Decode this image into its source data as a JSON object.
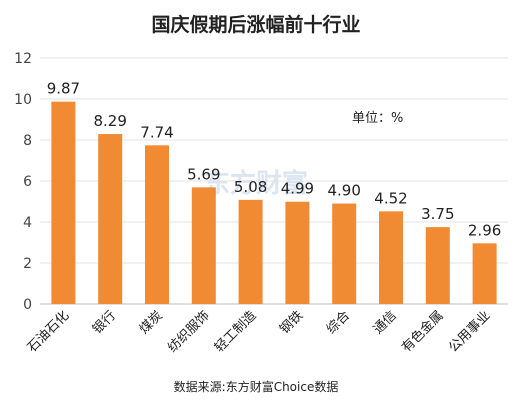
{
  "chart_data": {
    "type": "bar",
    "title": "国庆假期后涨幅前十行业",
    "unit_label": "单位：%",
    "source": "数据来源:东方财富Choice数据",
    "watermark": "东方财富",
    "categories": [
      "石油石化",
      "银行",
      "煤炭",
      "纺织服饰",
      "轻工制造",
      "钢铁",
      "综合",
      "通信",
      "有色金属",
      "公用事业"
    ],
    "values": [
      9.87,
      8.29,
      7.74,
      5.69,
      5.08,
      4.99,
      4.9,
      4.52,
      3.75,
      2.96
    ],
    "value_labels": [
      "9.87",
      "8.29",
      "7.74",
      "5.69",
      "5.08",
      "4.99",
      "4.90",
      "4.52",
      "3.75",
      "2.96"
    ],
    "ylim": [
      0,
      12
    ],
    "yticks": [
      "0",
      "2",
      "4",
      "6",
      "8",
      "10",
      "12"
    ],
    "grid": true,
    "bar_color": "#f08a33"
  }
}
